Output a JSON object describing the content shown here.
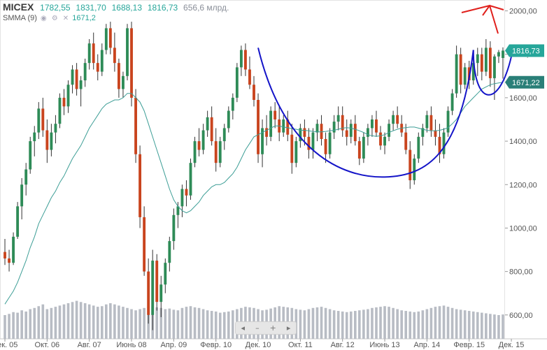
{
  "header": {
    "symbol": "MICEX",
    "open": "1782,55",
    "high": "1831,70",
    "low": "1688,13",
    "close": "1816,73",
    "volume": "656,6 млрд."
  },
  "indicator": {
    "label": "SMMA (9)",
    "value": "1671,2"
  },
  "price_tags": {
    "last": "1816,73",
    "smma": "1671,22"
  },
  "zoom_controls": {
    "left": "◂",
    "minus": "–",
    "plus": "+",
    "right": "▸"
  },
  "colors": {
    "up": "#2e8b57",
    "down": "#c9441e",
    "smma": "#3d9e96",
    "volume": "#b8bcc4",
    "annotation": "#1414c8",
    "arrow": "#e0201c"
  },
  "chart_data": {
    "type": "candlestick",
    "y_axis": {
      "min": 490,
      "max": 2050,
      "ticks": [
        600,
        800,
        1000,
        1200,
        1400,
        1600,
        1800,
        2000
      ],
      "tick_labels": [
        "600,00",
        "800,00",
        "1000,00",
        "1200,00",
        "1400,00",
        "1600,00",
        "1800,00",
        "2000,00"
      ]
    },
    "x_axis": {
      "labels": [
        "Дек. 05",
        "Окт. 06",
        "Авг. 07",
        "Июнь 08",
        "Апр. 09",
        "Февр. 10",
        "Дек. 10",
        "Окт. 11",
        "Авг. 12",
        "Июнь 13",
        "Апр. 14",
        "Февр. 15",
        "Дек. 15"
      ],
      "label_index": [
        0,
        10,
        20,
        30,
        40,
        50,
        60,
        70,
        80,
        90,
        100,
        110,
        120
      ]
    },
    "candles": [
      [
        890,
        950,
        830,
        860
      ],
      [
        860,
        900,
        800,
        840
      ],
      [
        840,
        980,
        830,
        960
      ],
      [
        960,
        1120,
        950,
        1100
      ],
      [
        1100,
        1230,
        1040,
        1200
      ],
      [
        1200,
        1300,
        1150,
        1270
      ],
      [
        1270,
        1420,
        1250,
        1400
      ],
      [
        1400,
        1470,
        1330,
        1440
      ],
      [
        1440,
        1580,
        1410,
        1550
      ],
      [
        1550,
        1600,
        1420,
        1450
      ],
      [
        1450,
        1500,
        1300,
        1360
      ],
      [
        1360,
        1480,
        1330,
        1440
      ],
      [
        1440,
        1520,
        1390,
        1480
      ],
      [
        1480,
        1620,
        1460,
        1600
      ],
      [
        1600,
        1640,
        1520,
        1560
      ],
      [
        1560,
        1680,
        1530,
        1660
      ],
      [
        1660,
        1750,
        1620,
        1730
      ],
      [
        1730,
        1760,
        1610,
        1640
      ],
      [
        1640,
        1700,
        1560,
        1680
      ],
      [
        1680,
        1780,
        1650,
        1760
      ],
      [
        1760,
        1870,
        1730,
        1850
      ],
      [
        1850,
        1900,
        1730,
        1760
      ],
      [
        1760,
        1800,
        1680,
        1720
      ],
      [
        1720,
        1850,
        1700,
        1820
      ],
      [
        1820,
        1940,
        1800,
        1920
      ],
      [
        1920,
        1950,
        1800,
        1830
      ],
      [
        1830,
        1900,
        1720,
        1760
      ],
      [
        1760,
        1780,
        1600,
        1640
      ],
      [
        1640,
        1720,
        1600,
        1700
      ],
      [
        1700,
        1940,
        1680,
        1920
      ],
      [
        1920,
        1950,
        1560,
        1600
      ],
      [
        1600,
        1640,
        1300,
        1340
      ],
      [
        1340,
        1380,
        1000,
        1050
      ],
      [
        1050,
        1100,
        780,
        800
      ],
      [
        800,
        860,
        560,
        600
      ],
      [
        600,
        900,
        530,
        850
      ],
      [
        850,
        880,
        620,
        660
      ],
      [
        660,
        780,
        590,
        740
      ],
      [
        740,
        860,
        700,
        840
      ],
      [
        840,
        960,
        800,
        940
      ],
      [
        940,
        1090,
        900,
        1060
      ],
      [
        1060,
        1120,
        1000,
        1100
      ],
      [
        1100,
        1200,
        1050,
        1180
      ],
      [
        1180,
        1220,
        1100,
        1150
      ],
      [
        1150,
        1320,
        1130,
        1300
      ],
      [
        1300,
        1420,
        1280,
        1400
      ],
      [
        1400,
        1460,
        1330,
        1360
      ],
      [
        1360,
        1480,
        1340,
        1450
      ],
      [
        1450,
        1540,
        1420,
        1510
      ],
      [
        1510,
        1560,
        1380,
        1400
      ],
      [
        1400,
        1460,
        1260,
        1300
      ],
      [
        1300,
        1420,
        1280,
        1400
      ],
      [
        1400,
        1480,
        1360,
        1460
      ],
      [
        1460,
        1560,
        1440,
        1540
      ],
      [
        1540,
        1620,
        1500,
        1600
      ],
      [
        1600,
        1760,
        1580,
        1740
      ],
      [
        1740,
        1840,
        1700,
        1820
      ],
      [
        1820,
        1850,
        1700,
        1730
      ],
      [
        1730,
        1790,
        1640,
        1660
      ],
      [
        1660,
        1700,
        1560,
        1590
      ],
      [
        1590,
        1620,
        1300,
        1340
      ],
      [
        1340,
        1500,
        1280,
        1460
      ],
      [
        1460,
        1520,
        1380,
        1420
      ],
      [
        1420,
        1560,
        1400,
        1540
      ],
      [
        1540,
        1580,
        1460,
        1500
      ],
      [
        1500,
        1560,
        1400,
        1440
      ],
      [
        1440,
        1520,
        1420,
        1500
      ],
      [
        1500,
        1540,
        1400,
        1430
      ],
      [
        1430,
        1480,
        1250,
        1300
      ],
      [
        1300,
        1420,
        1280,
        1400
      ],
      [
        1400,
        1480,
        1370,
        1460
      ],
      [
        1460,
        1500,
        1380,
        1420
      ],
      [
        1420,
        1460,
        1320,
        1360
      ],
      [
        1360,
        1460,
        1320,
        1440
      ],
      [
        1440,
        1500,
        1400,
        1480
      ],
      [
        1480,
        1520,
        1380,
        1410
      ],
      [
        1410,
        1440,
        1300,
        1340
      ],
      [
        1340,
        1460,
        1320,
        1440
      ],
      [
        1440,
        1520,
        1410,
        1490
      ],
      [
        1490,
        1560,
        1450,
        1520
      ],
      [
        1520,
        1560,
        1420,
        1450
      ],
      [
        1450,
        1500,
        1380,
        1420
      ],
      [
        1420,
        1500,
        1390,
        1480
      ],
      [
        1480,
        1520,
        1380,
        1400
      ],
      [
        1400,
        1420,
        1290,
        1320
      ],
      [
        1320,
        1440,
        1300,
        1420
      ],
      [
        1420,
        1480,
        1380,
        1460
      ],
      [
        1460,
        1520,
        1420,
        1500
      ],
      [
        1500,
        1540,
        1420,
        1440
      ],
      [
        1440,
        1470,
        1360,
        1380
      ],
      [
        1380,
        1440,
        1340,
        1420
      ],
      [
        1420,
        1500,
        1400,
        1480
      ],
      [
        1480,
        1540,
        1450,
        1520
      ],
      [
        1520,
        1560,
        1460,
        1480
      ],
      [
        1480,
        1520,
        1420,
        1440
      ],
      [
        1440,
        1480,
        1340,
        1360
      ],
      [
        1360,
        1400,
        1180,
        1220
      ],
      [
        1220,
        1340,
        1200,
        1320
      ],
      [
        1320,
        1440,
        1300,
        1420
      ],
      [
        1420,
        1480,
        1380,
        1460
      ],
      [
        1460,
        1540,
        1440,
        1520
      ],
      [
        1520,
        1560,
        1420,
        1450
      ],
      [
        1450,
        1500,
        1380,
        1420
      ],
      [
        1420,
        1480,
        1300,
        1340
      ],
      [
        1340,
        1460,
        1320,
        1440
      ],
      [
        1440,
        1560,
        1420,
        1540
      ],
      [
        1540,
        1640,
        1520,
        1620
      ],
      [
        1620,
        1840,
        1600,
        1800
      ],
      [
        1800,
        1830,
        1620,
        1660
      ],
      [
        1660,
        1760,
        1640,
        1740
      ],
      [
        1740,
        1770,
        1640,
        1680
      ],
      [
        1680,
        1780,
        1660,
        1760
      ],
      [
        1760,
        1830,
        1700,
        1800
      ],
      [
        1800,
        1830,
        1680,
        1720
      ],
      [
        1720,
        1870,
        1700,
        1830
      ],
      [
        1830,
        1860,
        1650,
        1690
      ],
      [
        1690,
        1800,
        1590,
        1790
      ],
      [
        1790,
        1820,
        1760,
        1810
      ],
      [
        1783,
        1832,
        1688,
        1817
      ]
    ],
    "smma": [
      650,
      680,
      710,
      750,
      800,
      850,
      910,
      960,
      1020,
      1060,
      1100,
      1140,
      1170,
      1210,
      1240,
      1280,
      1320,
      1350,
      1380,
      1420,
      1460,
      1490,
      1520,
      1550,
      1570,
      1580,
      1590,
      1590,
      1600,
      1620,
      1620,
      1600,
      1580,
      1540,
      1480,
      1420,
      1360,
      1300,
      1240,
      1180,
      1130,
      1100,
      1080,
      1070,
      1080,
      1100,
      1120,
      1150,
      1170,
      1190,
      1200,
      1200,
      1210,
      1230,
      1250,
      1280,
      1320,
      1360,
      1390,
      1420,
      1430,
      1440,
      1450,
      1460,
      1470,
      1470,
      1465,
      1462,
      1458,
      1455,
      1450,
      1450,
      1448,
      1445,
      1443,
      1443,
      1445,
      1448,
      1450,
      1455,
      1460,
      1462,
      1460,
      1455,
      1448,
      1440,
      1430,
      1425,
      1422,
      1425,
      1430,
      1440,
      1448,
      1455,
      1460,
      1462,
      1465,
      1465,
      1460,
      1455,
      1450,
      1448,
      1448,
      1450,
      1455,
      1462,
      1480,
      1500,
      1530,
      1560,
      1580,
      1600,
      1620,
      1640,
      1650,
      1660,
      1665,
      1668,
      1671
    ],
    "volume": [
      40,
      42,
      45,
      44,
      48,
      46,
      50,
      52,
      55,
      58,
      50,
      52,
      54,
      56,
      58,
      60,
      62,
      64,
      62,
      60,
      58,
      56,
      54,
      55,
      58,
      60,
      58,
      56,
      54,
      52,
      50,
      48,
      50,
      52,
      54,
      55,
      53,
      52,
      50,
      51,
      49,
      48,
      52,
      54,
      55,
      53,
      52,
      50,
      48,
      47,
      46,
      44,
      45,
      46,
      48,
      50,
      52,
      54,
      53,
      52,
      50,
      48,
      49,
      51,
      53,
      55,
      54,
      53,
      52,
      50,
      49,
      48,
      50,
      52,
      53,
      54,
      52,
      50,
      48,
      47,
      46,
      45,
      46,
      47,
      48,
      49,
      50,
      52,
      53,
      54,
      55,
      54,
      52,
      50,
      48,
      47,
      46,
      45,
      46,
      48,
      50,
      52,
      54,
      55,
      56,
      54,
      52,
      50,
      49,
      48,
      47,
      46,
      45,
      44,
      43,
      42,
      41,
      40,
      41
    ]
  }
}
